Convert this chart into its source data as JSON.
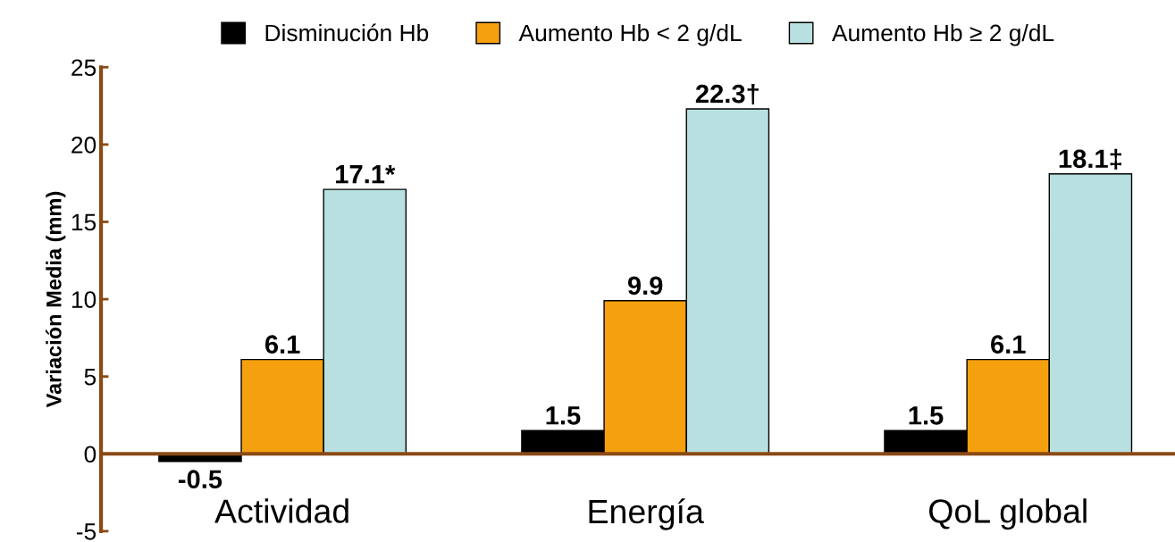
{
  "chart_data": {
    "type": "bar",
    "ylabel": "Variación Media (mm)",
    "categories": [
      "Actividad",
      "Energía",
      "QoL global"
    ],
    "series": [
      {
        "name": "Disminución Hb",
        "color": "#000000",
        "values": [
          -0.5,
          1.5,
          1.5
        ],
        "value_labels": [
          "-0.5",
          "1.5",
          "1.5"
        ]
      },
      {
        "name": "Aumento Hb < 2 g/dL",
        "color": "#f5a00f",
        "values": [
          6.1,
          9.9,
          6.1
        ],
        "value_labels": [
          "6.1",
          "9.9",
          "6.1"
        ]
      },
      {
        "name": "Aumento Hb ≥ 2 g/dL",
        "color": "#b9e0e0",
        "values": [
          17.1,
          22.3,
          18.1
        ],
        "value_labels": [
          "17.1*",
          "22.3†",
          "18.1‡"
        ]
      }
    ],
    "ylim": [
      -5,
      25
    ],
    "yticks": [
      -5,
      0,
      5,
      10,
      15,
      20,
      25
    ],
    "grid": false,
    "legend": "top"
  }
}
